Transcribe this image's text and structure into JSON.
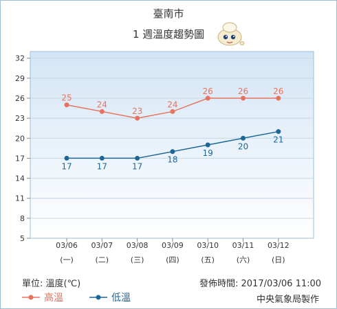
{
  "header": {
    "city": "臺南市",
    "subtitle": "1 週溫度趨勢圖"
  },
  "footer": {
    "unit": "單位: 溫度(℃)",
    "published": "發佈時間: 2017/03/06 11:00",
    "maker": "中央氣象局製作"
  },
  "colors": {
    "high": "#e8725e",
    "low": "#1d6796",
    "plot_top": "#d3e5f5",
    "plot_bottom": "#ffffff",
    "grid": "#c8d6e2"
  },
  "chart_data": {
    "type": "line",
    "categories": [
      "03/06",
      "03/07",
      "03/08",
      "03/09",
      "03/10",
      "03/11",
      "03/12"
    ],
    "weekdays": [
      "(一)",
      "(二)",
      "(三)",
      "(四)",
      "(五)",
      "(六)",
      "(日)"
    ],
    "series": [
      {
        "name": "高溫",
        "values": [
          25,
          24,
          23,
          24,
          26,
          26,
          26
        ]
      },
      {
        "name": "低溫",
        "values": [
          17,
          17,
          17,
          18,
          19,
          20,
          21
        ]
      }
    ],
    "yticks": [
      5,
      8,
      11,
      14,
      17,
      20,
      23,
      26,
      29,
      32
    ],
    "ylim": [
      5,
      33
    ],
    "grid": true,
    "legend": "bottom-left"
  }
}
